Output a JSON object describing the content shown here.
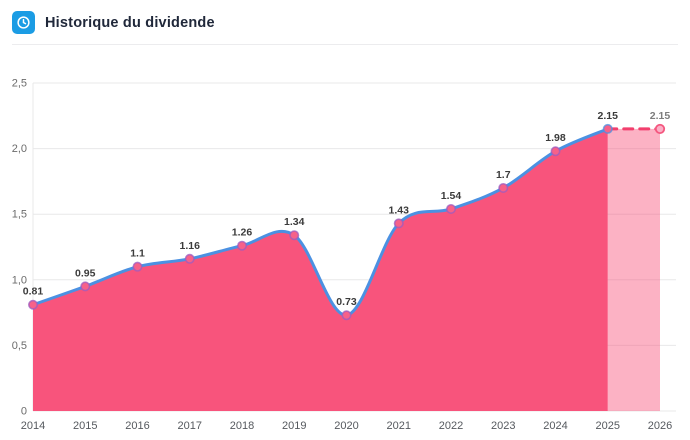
{
  "header": {
    "title": "Historique du dividende",
    "icon": "clock-icon",
    "icon_bg": "#1b9ce4",
    "icon_fg": "#ffffff"
  },
  "chart_data": {
    "type": "area",
    "title": "Historique du dividende",
    "categories": [
      "2014",
      "2015",
      "2016",
      "2017",
      "2018",
      "2019",
      "2020",
      "2021",
      "2022",
      "2023",
      "2024",
      "2025",
      "2026"
    ],
    "values": [
      0.81,
      0.95,
      1.1,
      1.16,
      1.26,
      1.34,
      0.73,
      1.43,
      1.54,
      1.7,
      1.98,
      2.15,
      2.15
    ],
    "point_labels": [
      "0.81",
      "0.95",
      "1.1",
      "1.16",
      "1.26",
      "1.34",
      "0.73",
      "1.43",
      "1.54",
      "1.7",
      "1.98",
      "2.15",
      "2.15"
    ],
    "projection": {
      "from_category": "2025",
      "to_category": "2026",
      "value": 2.15,
      "style": "dashed"
    },
    "ylim": [
      0,
      2.5
    ],
    "yticks": [
      {
        "v": 0,
        "label": "0"
      },
      {
        "v": 0.5,
        "label": "0,5"
      },
      {
        "v": 1.0,
        "label": "1,0"
      },
      {
        "v": 1.5,
        "label": "1,5"
      },
      {
        "v": 2.0,
        "label": "2,0"
      },
      {
        "v": 2.5,
        "label": "2,5"
      }
    ],
    "grid": true,
    "legend": "none",
    "colors": {
      "line": "#4b91e2",
      "area_fill": "#f8547c",
      "projection_fill_opacity": 0.45,
      "projection_line": "#f23f6d",
      "marker_fill": "#f76189",
      "marker_stroke": "#9d5cc0",
      "marker_stroke_last": "#4b91e2",
      "projection_marker_fill": "#fbafc6",
      "projection_marker_stroke": "#f4577f",
      "grid_line": "#e8e8e9",
      "axis_line": "#e8e8e9",
      "data_label": "#3b3b3b",
      "projection_label": "#7d7d7d",
      "x_tick": "#55595e",
      "y_tick": "#6b6b6b"
    }
  }
}
